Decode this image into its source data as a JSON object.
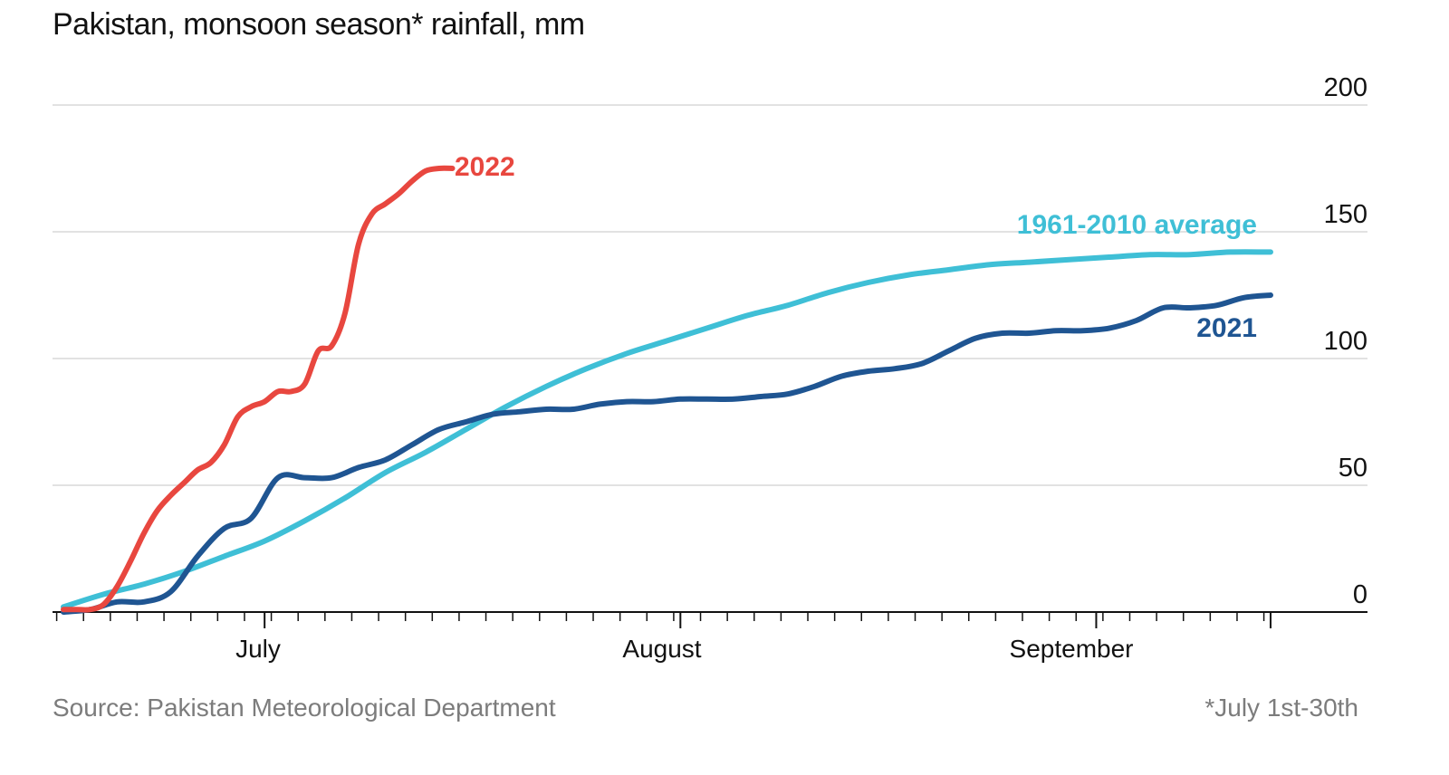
{
  "title": "Pakistan, monsoon season* rainfall, mm",
  "source": "Source: Pakistan Meteorological Department",
  "footnote": "*July 1st-30th",
  "chart_data": {
    "type": "line",
    "title": "Pakistan, monsoon season* rainfall, mm",
    "xlabel": "",
    "ylabel": "",
    "x_ticks": [
      "July",
      "August",
      "September"
    ],
    "y_ticks": [
      0,
      50,
      100,
      150,
      200
    ],
    "ylim": [
      0,
      200
    ],
    "xlim": [
      0,
      90
    ],
    "grid": true,
    "y_axis_side": "right",
    "series": [
      {
        "name": "2022",
        "color": "#e8473f",
        "x": [
          0,
          1,
          2,
          3,
          4,
          5,
          6,
          7,
          8,
          9,
          10,
          11,
          12,
          13,
          14,
          15,
          16,
          17,
          18,
          19,
          20,
          21,
          22,
          23,
          24,
          25,
          26,
          27,
          28,
          29
        ],
        "values": [
          1,
          1,
          1,
          3,
          10,
          20,
          31,
          40,
          46,
          51,
          56,
          59,
          66,
          77,
          81,
          83,
          87,
          87,
          90,
          103,
          105,
          118,
          145,
          157,
          161,
          165,
          170,
          174,
          175,
          175
        ]
      },
      {
        "name": "1961-2010 average",
        "color": "#3fbfd6",
        "x": [
          0,
          3,
          6,
          9,
          12,
          15,
          18,
          21,
          24,
          27,
          30,
          33,
          36,
          39,
          42,
          45,
          48,
          51,
          54,
          57,
          60,
          63,
          66,
          69,
          72,
          75,
          78,
          81,
          84,
          87,
          90
        ],
        "values": [
          2,
          7,
          11,
          16,
          22,
          28,
          36,
          45,
          55,
          63,
          72,
          81,
          89,
          96,
          102,
          107,
          112,
          117,
          121,
          126,
          130,
          133,
          135,
          137,
          138,
          139,
          140,
          141,
          141,
          142,
          142
        ]
      },
      {
        "name": "2021",
        "color": "#1f5592",
        "x": [
          0,
          2,
          4,
          6,
          8,
          10,
          12,
          14,
          16,
          18,
          20,
          22,
          24,
          26,
          28,
          30,
          32,
          34,
          36,
          38,
          40,
          42,
          44,
          46,
          48,
          50,
          52,
          54,
          56,
          58,
          60,
          62,
          64,
          66,
          68,
          70,
          72,
          74,
          76,
          78,
          80,
          82,
          84,
          86,
          88,
          90
        ],
        "values": [
          0,
          1,
          4,
          4,
          8,
          22,
          33,
          37,
          53,
          53,
          53,
          57,
          60,
          66,
          72,
          75,
          78,
          79,
          80,
          80,
          82,
          83,
          83,
          84,
          84,
          84,
          85,
          86,
          89,
          93,
          95,
          96,
          98,
          103,
          108,
          110,
          110,
          111,
          111,
          112,
          115,
          120,
          120,
          121,
          124,
          125
        ]
      }
    ]
  }
}
